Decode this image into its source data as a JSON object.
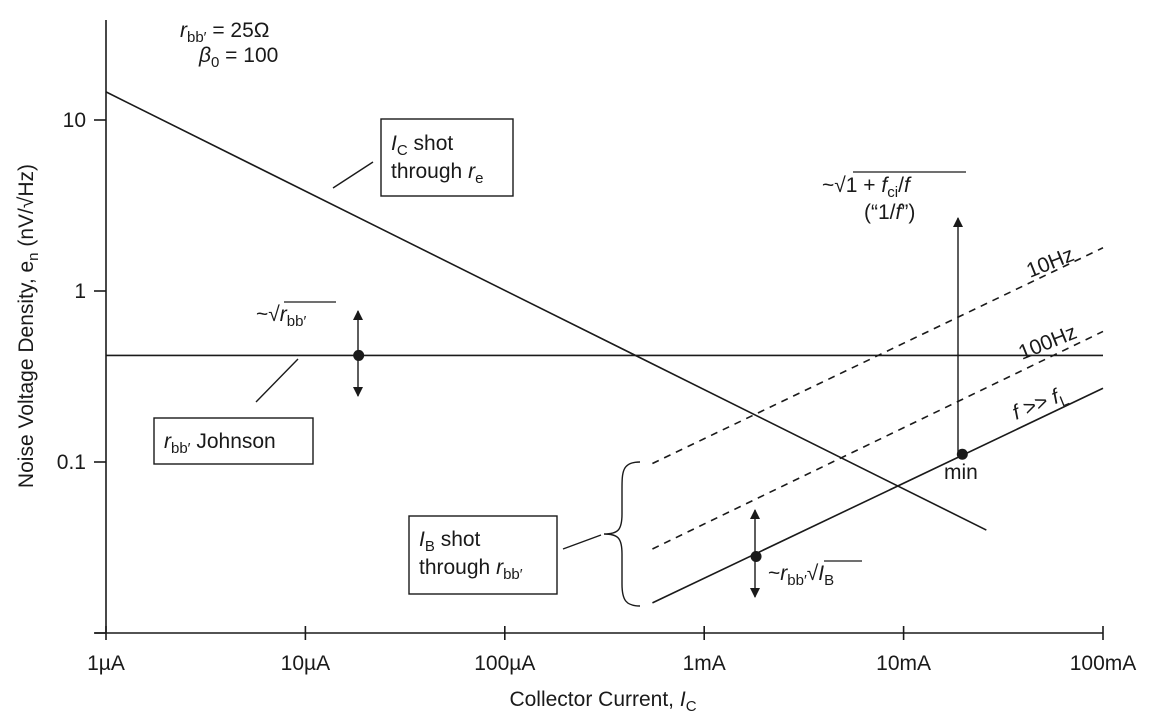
{
  "chart_data": {
    "type": "line",
    "x_scale": "log",
    "y_scale": "log",
    "xlabel": "Collector Current, ",
    "xlabel_var": "I",
    "xlabel_sub": "C",
    "ylabel": "Noise Voltage Density, e",
    "ylabel_sub": "n",
    "ylabel_unit": " (nV/√Hz)",
    "xlim": [
      1e-06,
      0.1
    ],
    "ylim": [
      0.01,
      30
    ],
    "x_ticks": [
      {
        "value": 1e-06,
        "label": "1µA"
      },
      {
        "value": 1e-05,
        "label": "10µA"
      },
      {
        "value": 0.0001,
        "label": "100µA"
      },
      {
        "value": 0.001,
        "label": "1mA"
      },
      {
        "value": 0.01,
        "label": "10mA"
      },
      {
        "value": 0.1,
        "label": "100mA"
      }
    ],
    "y_ticks": [
      {
        "value": 10,
        "label": "10"
      },
      {
        "value": 1,
        "label": "1"
      },
      {
        "value": 0.1,
        "label": "0.1"
      },
      {
        "value": 0.01,
        "label": ""
      }
    ],
    "params": {
      "line1": {
        "var": "r",
        "sub": "bb′",
        "rest": " = 25Ω"
      },
      "line2": {
        "var": "β",
        "sub": "0",
        "rest": " = 100"
      }
    },
    "series": [
      {
        "x": [
          1e-06,
          0.026
        ],
        "y": [
          14.6,
          0.04
        ],
        "style": "solid"
      },
      {
        "x": [
          1e-06,
          0.1
        ],
        "y": [
          0.42,
          0.42
        ],
        "style": "solid"
      },
      {
        "x": [
          0.00055,
          0.1
        ],
        "y": [
          0.015,
          0.27
        ],
        "style": "solid"
      },
      {
        "x": [
          0.00055,
          0.1
        ],
        "y": [
          0.031,
          0.58
        ],
        "style": "dashed"
      },
      {
        "x": [
          0.00055,
          0.1
        ],
        "y": [
          0.098,
          1.79
        ],
        "style": "dashed"
      }
    ],
    "points": [
      {
        "x": 1.85e-05,
        "y": 0.42
      },
      {
        "x": 0.00182,
        "y": 0.028
      },
      {
        "x": 0.0197,
        "y": 0.111
      }
    ],
    "annotations": {
      "ic_shot": {
        "l1_var": "I",
        "l1_sub": "C",
        "l1_rest": " shot",
        "l2_pre": "through ",
        "l2_var": "r",
        "l2_sub": "e"
      },
      "johnson": {
        "var": "r",
        "sub": "bb′",
        "rest": " Johnson"
      },
      "ib_shot": {
        "l1_var": "I",
        "l1_sub": "B",
        "l1_rest": " shot",
        "l2_pre": "through ",
        "l2_var": "r",
        "l2_sub": "bb′"
      },
      "sqrt_rbb": {
        "pre": "~√",
        "var": "r",
        "sub": "bb′"
      },
      "rbb_sqrt_ib": {
        "pre": "~",
        "var": "r",
        "sub": "bb′",
        "mid": "√",
        "var2": "I",
        "sub2": "B"
      },
      "one_over_f": {
        "pre": "~√1 + ",
        "var": "f",
        "sub": "ci",
        "post_sep": "/",
        "var2": "f",
        "line2_pre": "(“1/",
        "line2_var": "f",
        "line2_post": "”)"
      },
      "f10": "10Hz",
      "f100": "100Hz",
      "fl": {
        "var": "f",
        "mid": " >> ",
        "var2": "f",
        "sub2": "L"
      },
      "min": "min"
    }
  }
}
